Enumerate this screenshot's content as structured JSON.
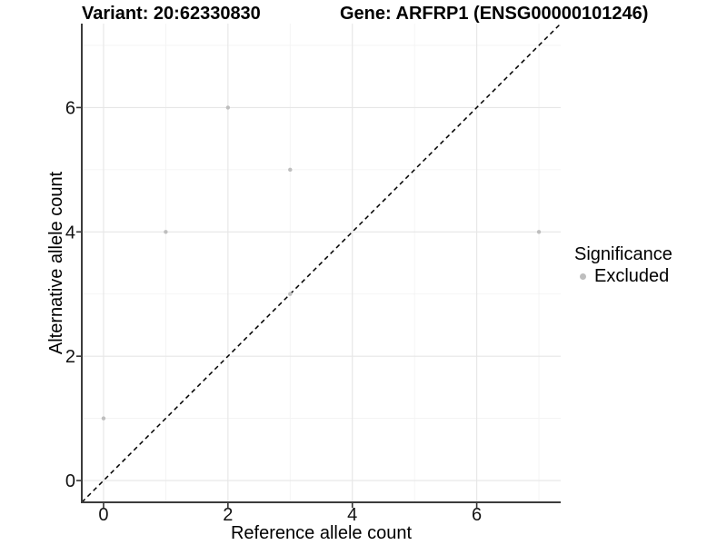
{
  "titles": {
    "variant": "Variant: 20:62330830",
    "gene": "Gene: ARFRP1 (ENSG00000101246)"
  },
  "legend": {
    "title": "Significance",
    "items": [
      {
        "label": "Excluded",
        "color": "#bebebe"
      }
    ]
  },
  "chart_data": {
    "type": "scatter",
    "title_left": "Variant: 20:62330830",
    "title_right": "Gene: ARFRP1 (ENSG00000101246)",
    "xlabel": "Reference allele count",
    "ylabel": "Alternative allele count",
    "xlim": [
      -0.35,
      7.35
    ],
    "ylim": [
      -0.35,
      7.35
    ],
    "x_major_ticks": [
      0,
      2,
      4,
      6
    ],
    "y_major_ticks": [
      0,
      2,
      4,
      6
    ],
    "x_minor_gridlines": [
      1,
      3,
      5,
      7
    ],
    "y_minor_gridlines": [
      1,
      3,
      5,
      7
    ],
    "grid": "major+minor",
    "legend_position": "right-center",
    "series": [
      {
        "name": "Excluded",
        "color": "#bebebe",
        "marker_radius": 2.2,
        "points": [
          [
            0,
            1
          ],
          [
            1,
            4
          ],
          [
            2,
            6
          ],
          [
            3,
            3
          ],
          [
            3,
            5
          ],
          [
            7,
            4
          ]
        ]
      }
    ],
    "reference_line": {
      "type": "identity",
      "slope": 1,
      "intercept": 0,
      "style": "dashed",
      "color": "#000000"
    }
  },
  "colors": {
    "background": "#ffffff",
    "grid_major": "#e6e6e6",
    "grid_minor": "#f3f3f3",
    "axis_line": "#3c3c3c",
    "tick_mark": "#333333",
    "tick_label": "#111111",
    "axis_title": "#000000"
  }
}
